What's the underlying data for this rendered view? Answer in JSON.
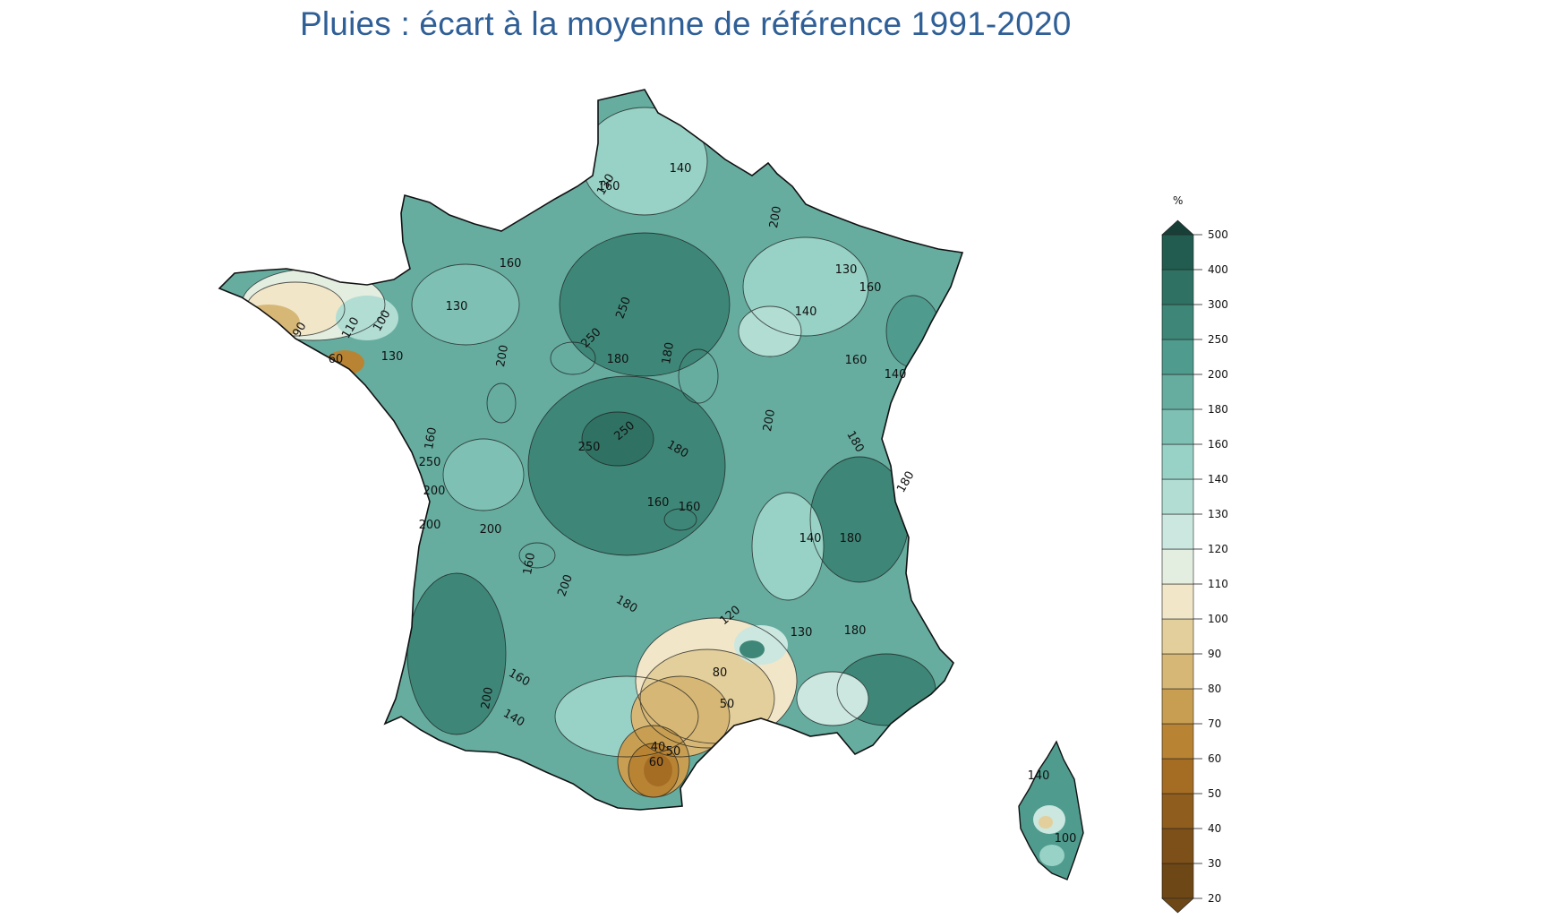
{
  "title": "Pluies : écart à la moyenne de référence 1991-2020",
  "legend": {
    "unit": "%",
    "ticks": [
      "20",
      "30",
      "40",
      "50",
      "60",
      "70",
      "80",
      "90",
      "100",
      "110",
      "120",
      "130",
      "140",
      "160",
      "180",
      "200",
      "250",
      "300",
      "400",
      "500"
    ],
    "colors": [
      "#6e4716",
      "#7d5019",
      "#8f5d1d",
      "#a56d24",
      "#b88434",
      "#c89f52",
      "#d6b776",
      "#e3cf9b",
      "#f1e6c8",
      "#e3ede0",
      "#cbe7df",
      "#b2ddd3",
      "#98d1c5",
      "#7ec1b4",
      "#66ada0",
      "#4f9b8d",
      "#3e8778",
      "#2f7264",
      "#225b4f",
      "#173f37"
    ]
  },
  "contour_labels": {
    "mainland": [
      "160",
      "130",
      "140",
      "180",
      "200",
      "250",
      "120",
      "110",
      "100",
      "90",
      "80",
      "50",
      "60",
      "40"
    ],
    "corsica": [
      "140",
      "100"
    ]
  }
}
